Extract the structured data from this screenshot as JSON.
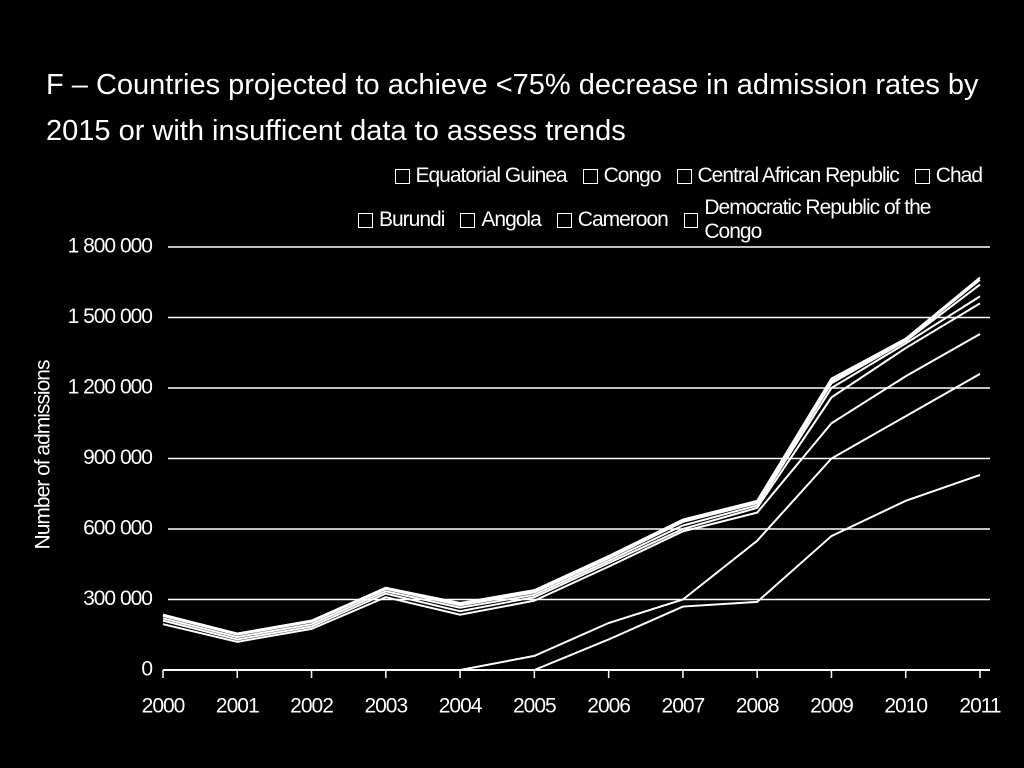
{
  "chart_data": {
    "type": "stacked-line",
    "title": "F – Countries projected to achieve <75% decrease in admission rates by 2015 or with insufficent data to assess trends",
    "y_label": "Number of admissions",
    "categories": [
      "2000",
      "2001",
      "2002",
      "2003",
      "2004",
      "2005",
      "2006",
      "2007",
      "2008",
      "2009",
      "2010",
      "2011"
    ],
    "series": [
      {
        "name": "Equatorial Guinea",
        "color": "#ffffff",
        "values": [
          0,
          0,
          0,
          0,
          5000,
          5000,
          5000,
          5000,
          5000,
          10000,
          5000,
          10000
        ]
      },
      {
        "name": "Congo",
        "color": "#ffffff",
        "values": [
          5000,
          5000,
          5000,
          5000,
          5000,
          5000,
          5000,
          5000,
          5000,
          10000,
          5000,
          20000
        ]
      },
      {
        "name": "Central African Republic",
        "color": "#ffffff",
        "values": [
          10000,
          10000,
          10000,
          10000,
          10000,
          10000,
          10000,
          15000,
          10000,
          20000,
          10000,
          50000
        ]
      },
      {
        "name": "Chad",
        "color": "#ffffff",
        "values": [
          10000,
          10000,
          10000,
          10000,
          15000,
          10000,
          10000,
          15000,
          10000,
          40000,
          20000,
          30000
        ]
      },
      {
        "name": "Burundi",
        "color": "#ffffff",
        "values": [
          15000,
          10000,
          10000,
          15000,
          15000,
          15000,
          15000,
          10000,
          20000,
          110000,
          120000,
          130000
        ]
      },
      {
        "name": "Angola",
        "color": "#ffffff",
        "values": [
          195000,
          120000,
          175000,
          310000,
          235000,
          235000,
          240000,
          290000,
          120000,
          150000,
          170000,
          170000
        ]
      },
      {
        "name": "Cameroon",
        "color": "#ffffff",
        "values": [
          null,
          null,
          null,
          null,
          0,
          60000,
          70000,
          30000,
          260000,
          330000,
          360000,
          430000
        ]
      },
      {
        "name": "Democratic Republic of the Congo",
        "color": "#ffffff",
        "values": [
          null,
          null,
          null,
          null,
          null,
          0,
          130000,
          270000,
          290000,
          570000,
          720000,
          830000
        ]
      }
    ],
    "ylim": [
      0,
      1800000
    ],
    "yticks": [
      0,
      {
        "value": 300000,
        "label": "300 000"
      },
      {
        "value": 600000,
        "label": "600 000"
      },
      {
        "value": 900000,
        "label": "900 000"
      },
      {
        "value": 1200000,
        "label": "1 200 000"
      },
      {
        "value": 1500000,
        "label": "1 500 000"
      },
      {
        "value": 1800000,
        "label": "1 800 000"
      }
    ],
    "grid": true
  }
}
